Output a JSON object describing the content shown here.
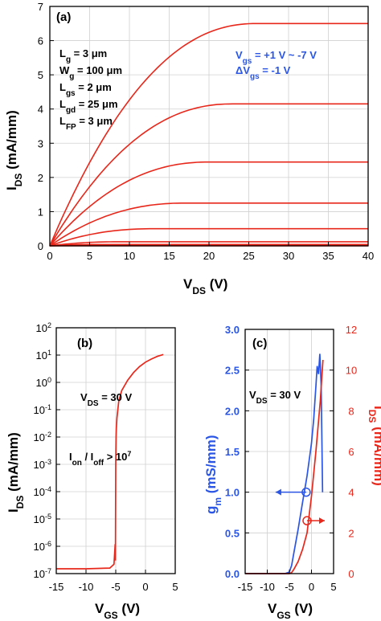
{
  "colors": {
    "red": "#e8271b",
    "blue": "#2a55e5",
    "grid": "#d0d0d0"
  },
  "chart_data": [
    {
      "panel": "(a)",
      "type": "line",
      "xlabel": {
        "main": "V",
        "sub": "DS",
        "unit": " (V)"
      },
      "ylabel": {
        "main": "I",
        "sub": "DS",
        "unit": " (mA/mm)"
      },
      "xlim": [
        0,
        40
      ],
      "ylim": [
        0,
        7
      ],
      "xticks": [
        "0",
        "5",
        "10",
        "15",
        "20",
        "25",
        "30",
        "35",
        "40"
      ],
      "yticks": [
        "0",
        "1",
        "2",
        "3",
        "4",
        "5",
        "6",
        "7"
      ],
      "grid": true,
      "params": [
        {
          "main": "L",
          "sub": "g",
          "rest": " = 3 μm"
        },
        {
          "main": "W",
          "sub": "g",
          "rest": " = 100 μm"
        },
        {
          "main": "L",
          "sub": "gs",
          "rest": " = 2 μm"
        },
        {
          "main": "L",
          "sub": "gd",
          "rest": " = 25 μm"
        },
        {
          "main": "L",
          "sub": "FP",
          "rest": " = 3 μm"
        }
      ],
      "vgs_text": {
        "main": "V",
        "sub": "gs",
        "rest": " = +1 V ~ -7 V"
      },
      "dvgs_text": {
        "main": "ΔV",
        "sub": "gs",
        "rest": " = -1 V"
      },
      "curves": [
        {
          "isat": 6.5,
          "vknee": 26
        },
        {
          "isat": 4.15,
          "vknee": 23
        },
        {
          "isat": 2.45,
          "vknee": 20
        },
        {
          "isat": 1.25,
          "vknee": 17
        },
        {
          "isat": 0.5,
          "vknee": 13
        },
        {
          "isat": 0.12,
          "vknee": 9
        },
        {
          "isat": 0.04,
          "vknee": 6
        },
        {
          "isat": 0.01,
          "vknee": 4
        },
        {
          "isat": 0.002,
          "vknee": 2
        }
      ]
    },
    {
      "panel": "(b)",
      "type": "line",
      "yscale": "log",
      "xlabel": {
        "main": "V",
        "sub": "GS",
        "unit": " (V)"
      },
      "ylabel": {
        "main": "I",
        "sub": "DS",
        "unit": " (mA/mm)"
      },
      "xlim": [
        -15,
        5
      ],
      "ylim_exp": [
        -7,
        2
      ],
      "xticks": [
        "-15",
        "-10",
        "-5",
        "0",
        "5"
      ],
      "ytick_exps": [
        2,
        1,
        0,
        -1,
        -2,
        -3,
        -4,
        -5,
        -6,
        -7
      ],
      "grid": true,
      "vds_text": {
        "main": "V",
        "sub": "DS",
        "rest": " = 30 V"
      },
      "ratio_text": {
        "a": "I",
        "asub": "on",
        "mid": " / I",
        "bsub": "off",
        "rest": " > 10",
        "sup": "7"
      },
      "x": [
        -15,
        -10,
        -6,
        -5.3,
        -5.1,
        -5.05,
        -5.0,
        -4.95,
        -4.9,
        -4.8,
        -4.5,
        -4,
        -3,
        -2,
        -1,
        0,
        1,
        2,
        3
      ],
      "y": [
        1.5e-07,
        1.5e-07,
        1.6e-07,
        2.2e-07,
        1.2e-06,
        3e-07,
        0.001,
        0.01,
        0.02,
        0.05,
        0.2,
        0.5,
        1.2,
        2.3,
        3.8,
        5.5,
        7.2,
        9.0,
        10.5
      ]
    },
    {
      "panel": "(c)",
      "type": "line",
      "xlabel": {
        "main": "V",
        "sub": "GS",
        "unit": " (V)"
      },
      "ylabel_left": {
        "main": "g",
        "sub": "m",
        "unit": " (mS/mm)"
      },
      "ylabel_right": {
        "main": "I",
        "sub": "DS",
        "unit": " (mA/mm)"
      },
      "xlim": [
        -15,
        5
      ],
      "ylim_left": [
        0,
        3
      ],
      "ylim_right": [
        0,
        12
      ],
      "xticks": [
        "-15",
        "-10",
        "-5",
        "0",
        "5"
      ],
      "yticks_left": [
        "0.0",
        "0.5",
        "1.0",
        "1.5",
        "2.0",
        "2.5",
        "3.0"
      ],
      "yticks_right": [
        "0",
        "2",
        "4",
        "6",
        "8",
        "10",
        "12"
      ],
      "grid": true,
      "vds_text": {
        "main": "V",
        "sub": "DS",
        "rest": " = 30 V"
      },
      "series": [
        {
          "name": "gm",
          "axis": "left",
          "color": "#2a55e5",
          "x": [
            -15,
            -6,
            -5,
            -4.5,
            -4,
            -3,
            -2,
            -1,
            0,
            0.5,
            1,
            1.3,
            1.6,
            1.9,
            2.2,
            2.5
          ],
          "y": [
            0,
            0,
            0.02,
            0.1,
            0.25,
            0.55,
            0.88,
            1.2,
            1.6,
            1.9,
            2.3,
            2.55,
            2.45,
            2.7,
            2.3,
            1.0
          ]
        },
        {
          "name": "IDS",
          "axis": "right",
          "color": "#e8271b",
          "x": [
            -15,
            -5,
            -4.5,
            -4,
            -3,
            -2,
            -1,
            0,
            1,
            2,
            2.6
          ],
          "y": [
            0,
            0,
            0.05,
            0.2,
            0.6,
            1.2,
            2.0,
            3.8,
            6.0,
            8.5,
            10.5
          ]
        }
      ],
      "markers": [
        {
          "axis": "left",
          "x": -1.2,
          "y": 1.0,
          "color": "#2a55e5",
          "arrow": "left"
        },
        {
          "axis": "right",
          "x": -1.0,
          "y": 2.6,
          "color": "#e8271b",
          "arrow": "right"
        }
      ]
    }
  ]
}
